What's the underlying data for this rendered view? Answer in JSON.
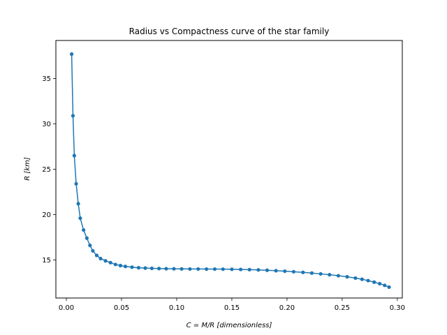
{
  "chart_data": {
    "type": "line",
    "title": "Radius vs Compactness curve of the star family",
    "xlabel": "C = M/R [dimensionless]",
    "ylabel": "R [km]",
    "xlim": [
      -0.0095,
      0.3045
    ],
    "ylim": [
      10.8,
      39.2
    ],
    "xticks": [
      0.0,
      0.05,
      0.1,
      0.15,
      0.2,
      0.25,
      0.3
    ],
    "xtick_labels": [
      "0.00",
      "0.05",
      "0.10",
      "0.15",
      "0.20",
      "0.25",
      "0.30"
    ],
    "yticks": [
      15,
      20,
      25,
      30,
      35
    ],
    "ytick_labels": [
      "15",
      "20",
      "25",
      "30",
      "35"
    ],
    "grid": false,
    "legend": "none",
    "color": "#1f77b4",
    "marker": "circle",
    "series": [
      {
        "x": [
          0.0048,
          0.006,
          0.0072,
          0.0089,
          0.0108,
          0.0126,
          0.0156,
          0.0186,
          0.0214,
          0.024,
          0.0275,
          0.031,
          0.0355,
          0.04,
          0.0445,
          0.049,
          0.0535,
          0.0595,
          0.0655,
          0.0715,
          0.0775,
          0.084,
          0.0905,
          0.0975,
          0.1045,
          0.112,
          0.1195,
          0.127,
          0.1345,
          0.142,
          0.15,
          0.158,
          0.166,
          0.174,
          0.182,
          0.19,
          0.198,
          0.206,
          0.2145,
          0.2225,
          0.2305,
          0.2385,
          0.2465,
          0.2545,
          0.262,
          0.268,
          0.2735,
          0.279,
          0.284,
          0.2885,
          0.2925
        ],
        "y": [
          37.7,
          30.9,
          26.5,
          23.4,
          21.2,
          19.6,
          18.3,
          17.4,
          16.6,
          16.0,
          15.5,
          15.15,
          14.9,
          14.7,
          14.5,
          14.38,
          14.28,
          14.2,
          14.14,
          14.1,
          14.07,
          14.05,
          14.03,
          14.02,
          14.01,
          14.0,
          14.0,
          13.99,
          13.99,
          13.98,
          13.97,
          13.95,
          13.93,
          13.9,
          13.86,
          13.81,
          13.76,
          13.7,
          13.63,
          13.55,
          13.46,
          13.37,
          13.26,
          13.14,
          13.0,
          12.87,
          12.72,
          12.55,
          12.38,
          12.2,
          12.0
        ]
      }
    ]
  }
}
